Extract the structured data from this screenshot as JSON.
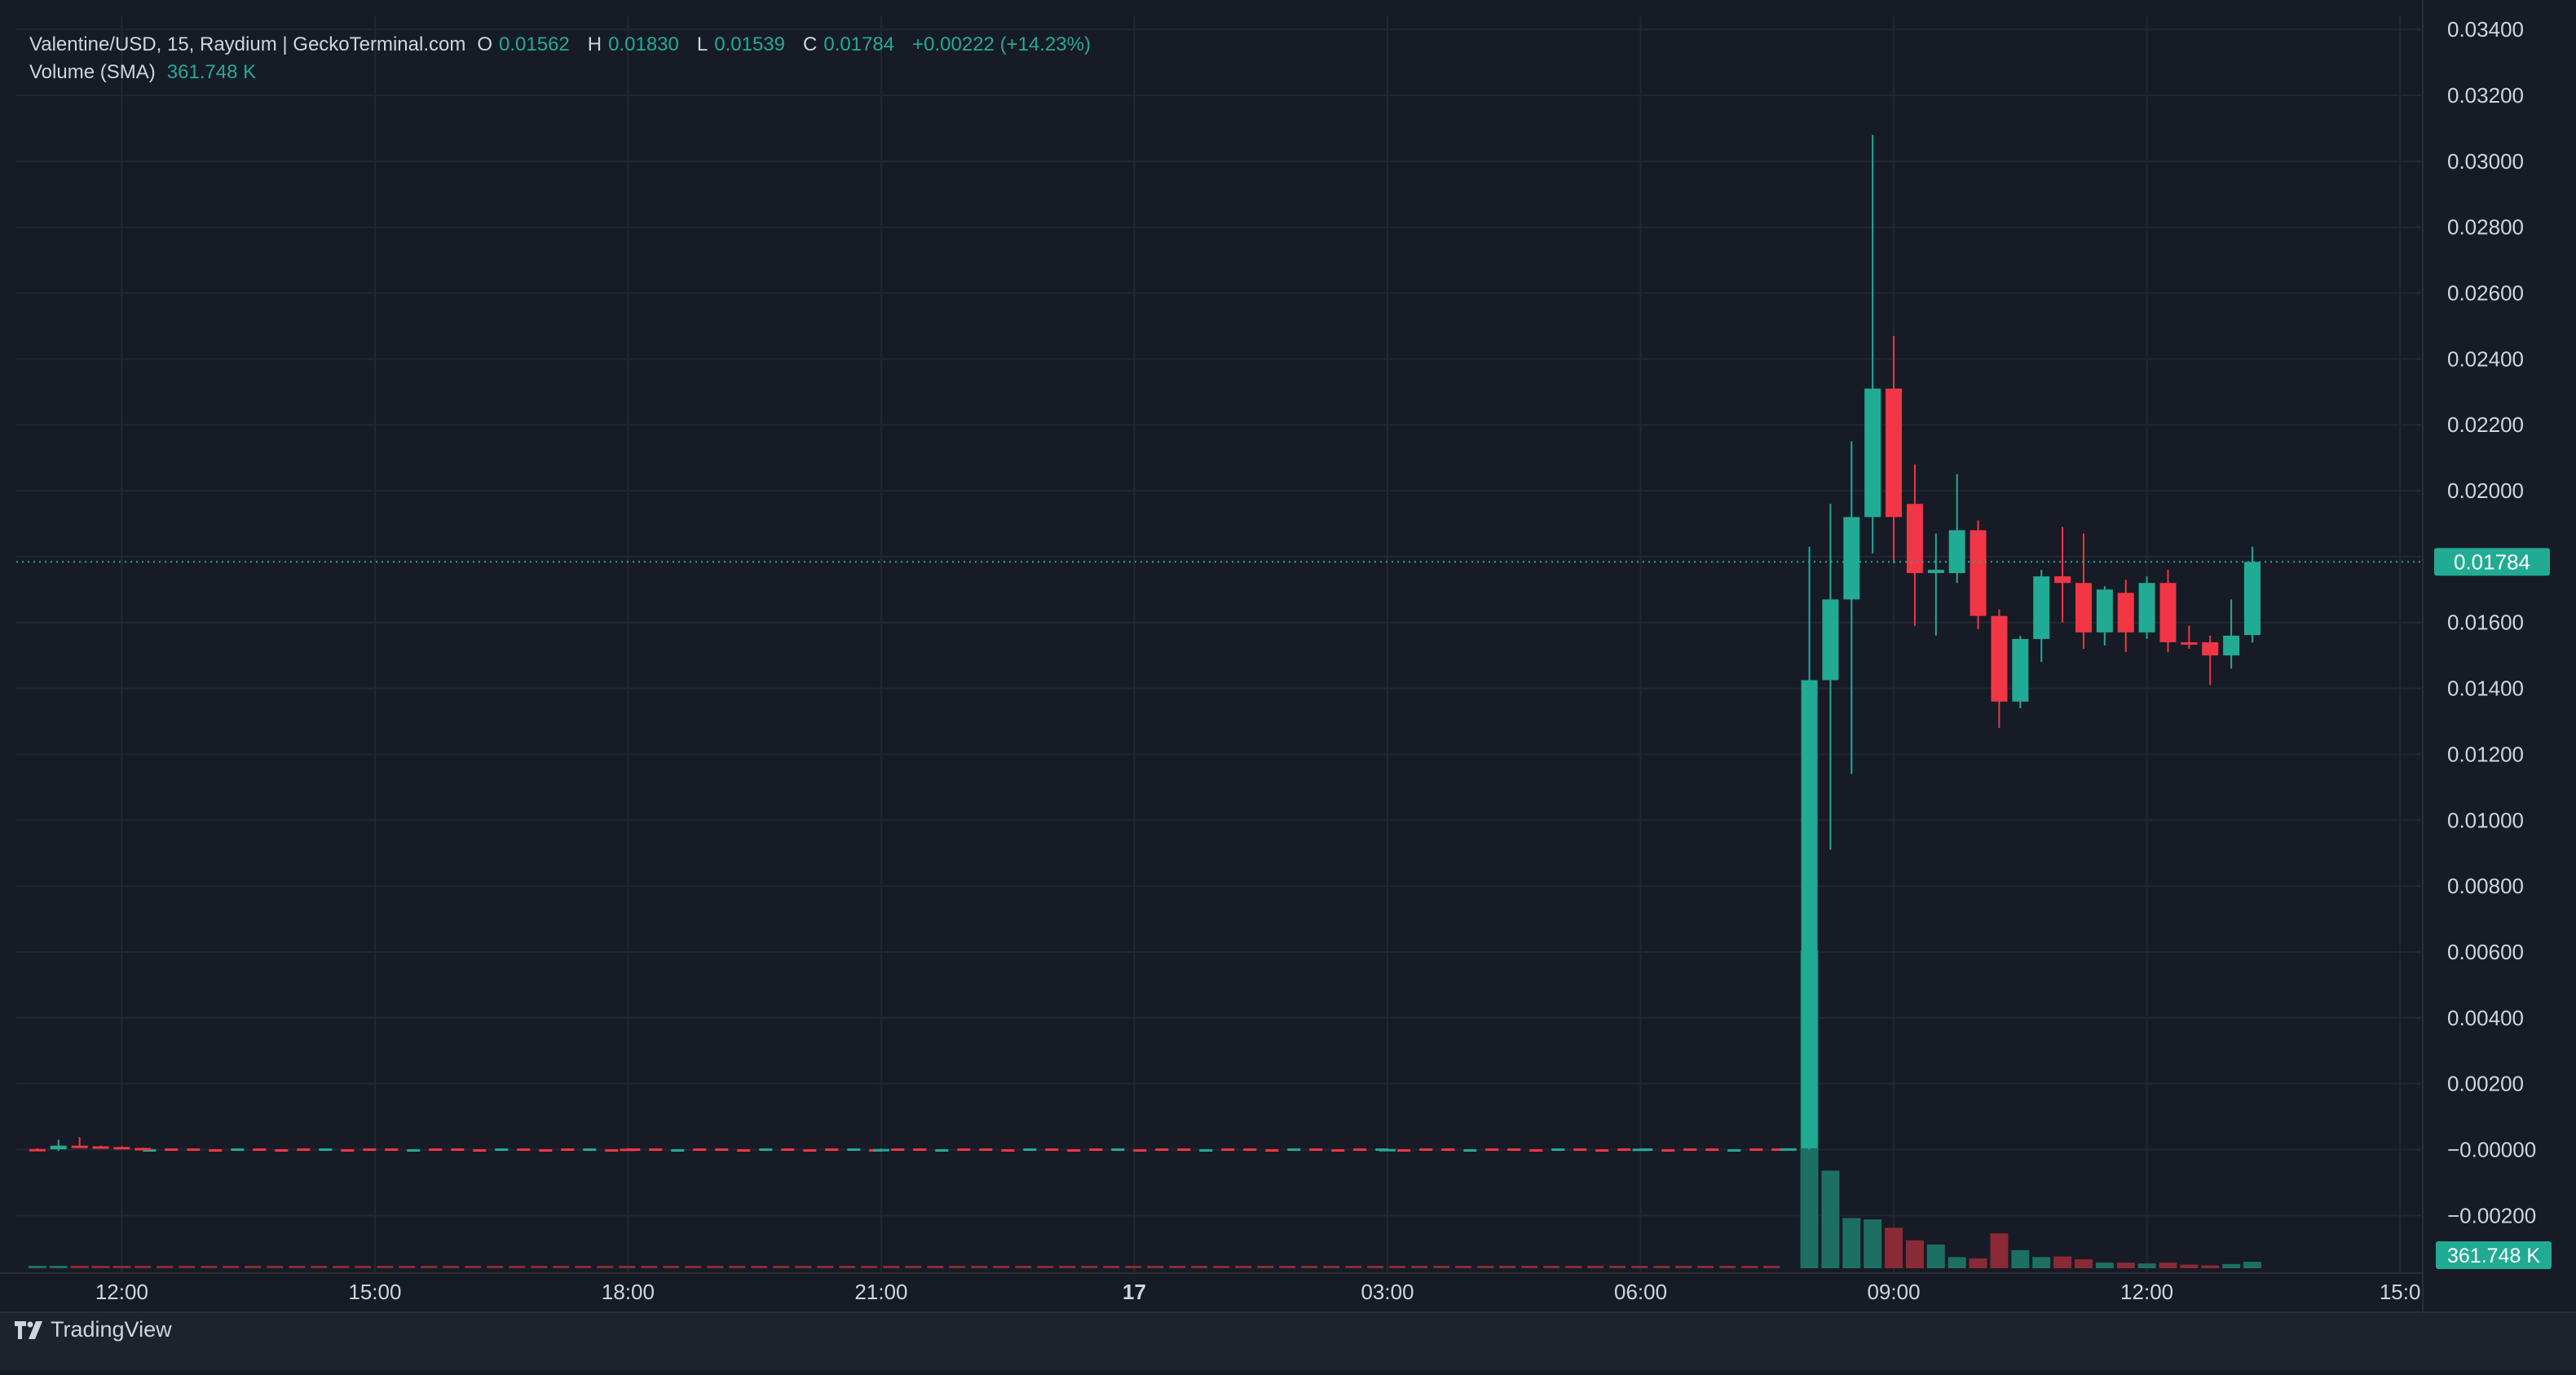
{
  "legend": {
    "symbol": "Valentine/USD, 15, Raydium | GeckoTerminal.com",
    "o_label": "O",
    "o_value": "0.01562",
    "h_label": "H",
    "h_value": "0.01830",
    "l_label": "L",
    "l_value": "0.01539",
    "c_label": "C",
    "c_value": "0.01784",
    "change": "+0.00222 (+14.23%)",
    "volume_label": "Volume (SMA)",
    "volume_value": "361.748 K"
  },
  "branding": {
    "name": "TradingView"
  },
  "colors": {
    "background": "#171b26",
    "grid": "#232733",
    "up": "#22ab94",
    "down": "#f23645",
    "up_volume": "#1d6f62",
    "down_volume": "#8a2a35",
    "axis_text": "#d1d4dc",
    "price_tag": "#22ab94"
  },
  "chart_data": {
    "type": "candlestick",
    "title": "Valentine/USD, 15, Raydium | GeckoTerminal.com",
    "interval_minutes": 15,
    "y_axis": {
      "ticks": [
        "0.03400",
        "0.03200",
        "0.03000",
        "0.02800",
        "0.02600",
        "0.02400",
        "0.02200",
        "0.02000",
        "0.01800",
        "0.01600",
        "0.01400",
        "0.01200",
        "0.01000",
        "0.00800",
        "0.00600",
        "0.00400",
        "0.00200",
        "−0.00000",
        "−0.00200"
      ],
      "range": [
        -0.0036,
        0.0344
      ]
    },
    "x_axis": {
      "ticks": [
        "12:00",
        "15:00",
        "18:00",
        "21:00",
        "17",
        "03:00",
        "06:00",
        "09:00",
        "12:00",
        "15:0"
      ],
      "range": [
        "16 10:45",
        "17 15:15"
      ]
    },
    "last_price_label": "0.01784",
    "last_price": 0.01784,
    "volume_sma_label": "361.748 K",
    "candles": [
      {
        "t": "16 11:00",
        "o": 2e-05,
        "h": 4e-05,
        "l": 0.0,
        "c": 1e-05
      },
      {
        "t": "16 11:15",
        "o": 1e-05,
        "h": 0.0003,
        "l": -4e-05,
        "c": 0.00012
      },
      {
        "t": "16 11:30",
        "o": 0.00012,
        "h": 0.00038,
        "l": 4e-05,
        "c": 0.0001
      },
      {
        "t": "16 11:45",
        "o": 0.0001,
        "h": 0.00012,
        "l": 6e-05,
        "c": 8e-05
      },
      {
        "t": "16 12:00",
        "o": 8e-05,
        "h": 0.0001,
        "l": 4e-05,
        "c": 5e-05
      },
      {
        "t": "16 12:15",
        "o": 5e-05,
        "h": 6e-05,
        "l": 2e-05,
        "c": 3e-05
      },
      {
        "t": "16 18:00",
        "o": 3e-05,
        "h": 4e-05,
        "l": 1e-05,
        "c": 2e-05
      },
      {
        "t": "16 21:00",
        "o": 2e-05,
        "h": 3e-05,
        "l": 1e-05,
        "c": 2e-05
      },
      {
        "t": "17 03:00",
        "o": 2e-05,
        "h": 3e-05,
        "l": 1e-05,
        "c": 2e-05
      },
      {
        "t": "17 06:00",
        "o": 2e-05,
        "h": 3e-05,
        "l": 1e-05,
        "c": 3e-05
      },
      {
        "t": "17 07:45",
        "o": 3e-05,
        "h": 4e-05,
        "l": 2e-05,
        "c": 4e-05
      },
      {
        "t": "17 08:00",
        "o": 4e-05,
        "h": 0.0183,
        "l": 0.0,
        "c": 0.01425
      },
      {
        "t": "17 08:15",
        "o": 0.01425,
        "h": 0.0196,
        "l": 0.0091,
        "c": 0.0167
      },
      {
        "t": "17 08:30",
        "o": 0.0167,
        "h": 0.0215,
        "l": 0.0114,
        "c": 0.0192
      },
      {
        "t": "17 08:45",
        "o": 0.0192,
        "h": 0.0308,
        "l": 0.0181,
        "c": 0.0231
      },
      {
        "t": "17 09:00",
        "o": 0.0231,
        "h": 0.0247,
        "l": 0.0178,
        "c": 0.0192
      },
      {
        "t": "17 09:15",
        "o": 0.0196,
        "h": 0.0208,
        "l": 0.0159,
        "c": 0.0175
      },
      {
        "t": "17 09:30",
        "o": 0.0175,
        "h": 0.0187,
        "l": 0.0156,
        "c": 0.0176
      },
      {
        "t": "17 09:45",
        "o": 0.0175,
        "h": 0.0205,
        "l": 0.0172,
        "c": 0.0188
      },
      {
        "t": "17 10:00",
        "o": 0.0188,
        "h": 0.0191,
        "l": 0.0158,
        "c": 0.0162
      },
      {
        "t": "17 10:15",
        "o": 0.0162,
        "h": 0.0164,
        "l": 0.0128,
        "c": 0.0136
      },
      {
        "t": "17 10:30",
        "o": 0.0136,
        "h": 0.0156,
        "l": 0.0134,
        "c": 0.0155
      },
      {
        "t": "17 10:45",
        "o": 0.0155,
        "h": 0.0176,
        "l": 0.0148,
        "c": 0.0174
      },
      {
        "t": "17 11:00",
        "o": 0.0174,
        "h": 0.0189,
        "l": 0.016,
        "c": 0.0172
      },
      {
        "t": "17 11:15",
        "o": 0.0172,
        "h": 0.0187,
        "l": 0.0152,
        "c": 0.0157
      },
      {
        "t": "17 11:30",
        "o": 0.0157,
        "h": 0.0171,
        "l": 0.0153,
        "c": 0.017
      },
      {
        "t": "17 11:45",
        "o": 0.0169,
        "h": 0.0173,
        "l": 0.0151,
        "c": 0.0157
      },
      {
        "t": "17 12:00",
        "o": 0.0157,
        "h": 0.0174,
        "l": 0.0155,
        "c": 0.0172
      },
      {
        "t": "17 12:15",
        "o": 0.0172,
        "h": 0.0176,
        "l": 0.0151,
        "c": 0.0154
      },
      {
        "t": "17 12:30",
        "o": 0.0154,
        "h": 0.0159,
        "l": 0.0152,
        "c": 0.01535
      },
      {
        "t": "17 12:45",
        "o": 0.0154,
        "h": 0.0156,
        "l": 0.0141,
        "c": 0.015
      },
      {
        "t": "17 13:00",
        "o": 0.015,
        "h": 0.0167,
        "l": 0.0146,
        "c": 0.0156
      },
      {
        "t": "17 13:15",
        "o": 0.01562,
        "h": 0.0183,
        "l": 0.01539,
        "c": 0.01784
      }
    ],
    "volume": [
      {
        "t": "16 11:00",
        "v": 20,
        "dir": "up"
      },
      {
        "t": "16 11:15",
        "v": 80,
        "dir": "up"
      },
      {
        "t": "16 11:30",
        "v": 70,
        "dir": "down"
      },
      {
        "t": "16 11:45",
        "v": 30,
        "dir": "down"
      },
      {
        "t": "16 12:00",
        "v": 20,
        "dir": "down"
      },
      {
        "t": "17 08:00",
        "v": 11400,
        "dir": "up"
      },
      {
        "t": "17 08:15",
        "v": 3500,
        "dir": "up"
      },
      {
        "t": "17 08:30",
        "v": 1800,
        "dir": "up"
      },
      {
        "t": "17 08:45",
        "v": 1750,
        "dir": "up"
      },
      {
        "t": "17 09:00",
        "v": 1450,
        "dir": "down"
      },
      {
        "t": "17 09:15",
        "v": 1000,
        "dir": "down"
      },
      {
        "t": "17 09:30",
        "v": 850,
        "dir": "up"
      },
      {
        "t": "17 09:45",
        "v": 400,
        "dir": "up"
      },
      {
        "t": "17 10:00",
        "v": 350,
        "dir": "down"
      },
      {
        "t": "17 10:15",
        "v": 1250,
        "dir": "down"
      },
      {
        "t": "17 10:30",
        "v": 650,
        "dir": "up"
      },
      {
        "t": "17 10:45",
        "v": 400,
        "dir": "up"
      },
      {
        "t": "17 11:00",
        "v": 420,
        "dir": "down"
      },
      {
        "t": "17 11:15",
        "v": 320,
        "dir": "down"
      },
      {
        "t": "17 11:30",
        "v": 200,
        "dir": "up"
      },
      {
        "t": "17 11:45",
        "v": 200,
        "dir": "down"
      },
      {
        "t": "17 12:00",
        "v": 170,
        "dir": "up"
      },
      {
        "t": "17 12:15",
        "v": 200,
        "dir": "down"
      },
      {
        "t": "17 12:30",
        "v": 130,
        "dir": "down"
      },
      {
        "t": "17 12:45",
        "v": 100,
        "dir": "down"
      },
      {
        "t": "17 13:00",
        "v": 150,
        "dir": "up"
      },
      {
        "t": "17 13:15",
        "v": 230,
        "dir": "up"
      }
    ],
    "grid": true
  }
}
